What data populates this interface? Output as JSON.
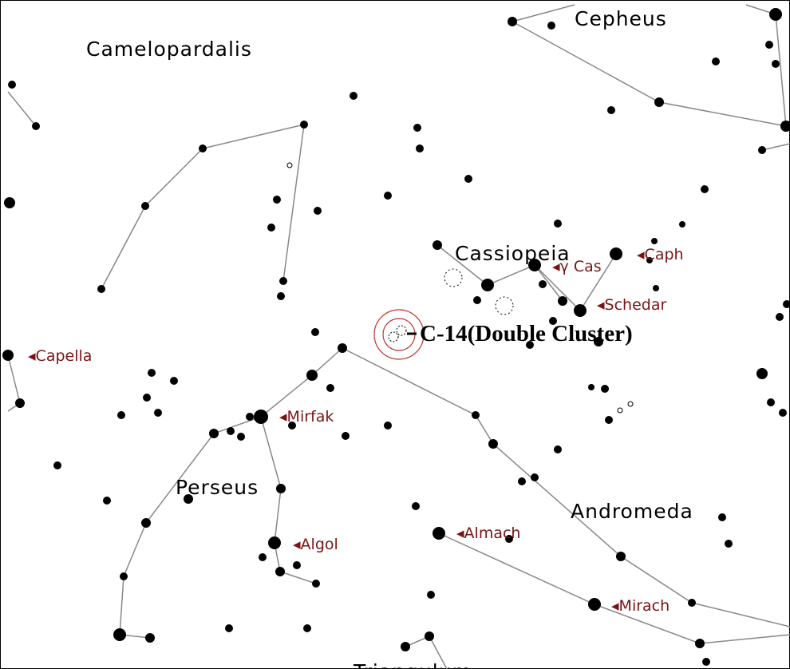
{
  "constellations": [
    "Cepheus",
    "Camelopardalis",
    "Cassiopeia",
    "Perseus",
    "Andromeda",
    "Triangulum"
  ],
  "stars": [
    "Caph",
    "γ Cas",
    "Schedar",
    "Capella",
    "Mirfak",
    "Algol",
    "Almach",
    "Mirach"
  ],
  "object": {
    "label": "C-14(Double Cluster)"
  }
}
